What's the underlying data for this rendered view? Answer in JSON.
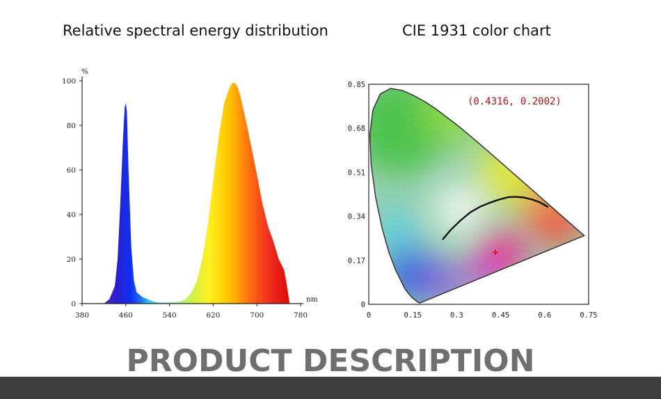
{
  "chart_data": [
    {
      "type": "area",
      "title": "Relative spectral energy distribution",
      "xlabel": "nm",
      "ylabel": "%",
      "xlim": [
        380,
        780
      ],
      "ylim": [
        0,
        100
      ],
      "x_ticks": [
        380,
        460,
        540,
        620,
        700,
        780
      ],
      "y_ticks": [
        0,
        20,
        40,
        60,
        80,
        100
      ],
      "series": [
        {
          "x": [
            420,
            430,
            440,
            445,
            450,
            455,
            458,
            460,
            462,
            465,
            470,
            475,
            480,
            490,
            500,
            510,
            520,
            540,
            560,
            570,
            580,
            590,
            600,
            610,
            620,
            630,
            640,
            650,
            655,
            660,
            665,
            670,
            680,
            690,
            700,
            710,
            720,
            730,
            740,
            750,
            755,
            760
          ],
          "y": [
            0,
            2,
            8,
            20,
            45,
            75,
            88,
            90,
            86,
            60,
            25,
            10,
            5,
            3,
            2,
            1,
            0.5,
            0.5,
            1,
            2,
            5,
            10,
            20,
            35,
            55,
            75,
            90,
            97,
            99,
            99,
            97,
            93,
            82,
            70,
            58,
            45,
            35,
            28,
            20,
            15,
            8,
            0
          ]
        }
      ],
      "grid": false
    },
    {
      "type": "scatter",
      "title": "CIE 1931 color chart",
      "xlim": [
        0,
        0.75
      ],
      "ylim": [
        0,
        0.85
      ],
      "x_ticks": [
        "0",
        "0.15",
        "0.3",
        "0.45",
        "0.6",
        "0.75"
      ],
      "y_ticks": [
        "0",
        "0.17",
        "0.34",
        "0.51",
        "0.68",
        "0.85"
      ],
      "point": {
        "x": 0.4316,
        "y": 0.2002,
        "label": "(0.4316, 0.2002)"
      },
      "grid": false
    }
  ],
  "colors": {
    "point_marker": "#d81b3c",
    "annotation": "#a01818"
  },
  "footer": {
    "text": "PRODUCT DESCRIPTION"
  }
}
